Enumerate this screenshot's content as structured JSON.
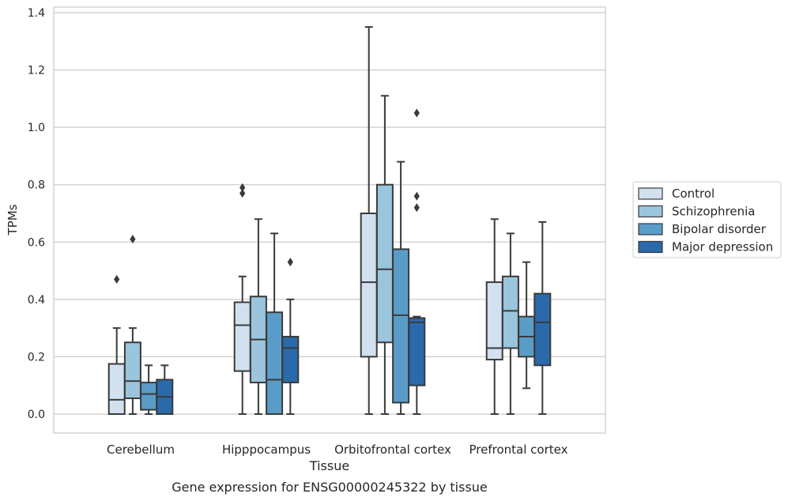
{
  "chart_data": {
    "type": "box",
    "title": "",
    "caption": "Gene expression for ENSG00000245322 by tissue",
    "xlabel": "Tissue",
    "ylabel": "TPMs",
    "ylim": [
      -0.065,
      1.42
    ],
    "yticks": [
      0.0,
      0.2,
      0.4,
      0.6,
      0.8,
      1.0,
      1.2,
      1.4
    ],
    "ytick_labels": [
      "0.0",
      "0.2",
      "0.4",
      "0.6",
      "0.8",
      "1.0",
      "1.2",
      "1.4"
    ],
    "grid": "horizontal",
    "legend_position": "right",
    "categories": [
      "Cerebellum",
      "Hipppocampus",
      "Orbitofrontal cortex",
      "Prefrontal cortex"
    ],
    "series": [
      {
        "name": "Control",
        "color": "#d1e1f0",
        "boxes": [
          {
            "whislo": 0.0,
            "q1": 0.0,
            "med": 0.05,
            "q3": 0.175,
            "whishi": 0.3,
            "fliers": [
              0.47
            ]
          },
          {
            "whislo": 0.0,
            "q1": 0.15,
            "med": 0.31,
            "q3": 0.39,
            "whishi": 0.48,
            "fliers": [
              0.77,
              0.79
            ]
          },
          {
            "whislo": 0.0,
            "q1": 0.2,
            "med": 0.46,
            "q3": 0.7,
            "whishi": 1.35,
            "fliers": []
          },
          {
            "whislo": 0.0,
            "q1": 0.19,
            "med": 0.23,
            "q3": 0.46,
            "whishi": 0.68,
            "fliers": []
          }
        ]
      },
      {
        "name": "Schizophrenia",
        "color": "#9ac5dc",
        "boxes": [
          {
            "whislo": 0.0,
            "q1": 0.055,
            "med": 0.115,
            "q3": 0.25,
            "whishi": 0.3,
            "fliers": [
              0.61
            ]
          },
          {
            "whislo": 0.0,
            "q1": 0.11,
            "med": 0.26,
            "q3": 0.41,
            "whishi": 0.68,
            "fliers": []
          },
          {
            "whislo": 0.0,
            "q1": 0.25,
            "med": 0.505,
            "q3": 0.8,
            "whishi": 1.11,
            "fliers": []
          },
          {
            "whislo": 0.0,
            "q1": 0.23,
            "med": 0.36,
            "q3": 0.48,
            "whishi": 0.63,
            "fliers": []
          }
        ]
      },
      {
        "name": "Bipolar disorder",
        "color": "#5a9cc8",
        "boxes": [
          {
            "whislo": 0.0,
            "q1": 0.015,
            "med": 0.07,
            "q3": 0.11,
            "whishi": 0.17,
            "fliers": []
          },
          {
            "whislo": 0.0,
            "q1": 0.0,
            "med": 0.12,
            "q3": 0.355,
            "whishi": 0.63,
            "fliers": []
          },
          {
            "whislo": 0.0,
            "q1": 0.04,
            "med": 0.345,
            "q3": 0.575,
            "whishi": 0.88,
            "fliers": []
          },
          {
            "whislo": 0.09,
            "q1": 0.2,
            "med": 0.27,
            "q3": 0.34,
            "whishi": 0.53,
            "fliers": []
          }
        ]
      },
      {
        "name": "Major depression",
        "color": "#2a6aab",
        "boxes": [
          {
            "whislo": 0.0,
            "q1": 0.0,
            "med": 0.06,
            "q3": 0.12,
            "whishi": 0.17,
            "fliers": []
          },
          {
            "whislo": 0.0,
            "q1": 0.11,
            "med": 0.23,
            "q3": 0.27,
            "whishi": 0.4,
            "fliers": [
              0.53
            ]
          },
          {
            "whislo": 0.0,
            "q1": 0.1,
            "med": 0.32,
            "q3": 0.335,
            "whishi": 0.34,
            "fliers": [
              0.72,
              0.76,
              1.05
            ]
          },
          {
            "whislo": 0.0,
            "q1": 0.17,
            "med": 0.32,
            "q3": 0.42,
            "whishi": 0.67,
            "fliers": []
          }
        ]
      }
    ]
  }
}
